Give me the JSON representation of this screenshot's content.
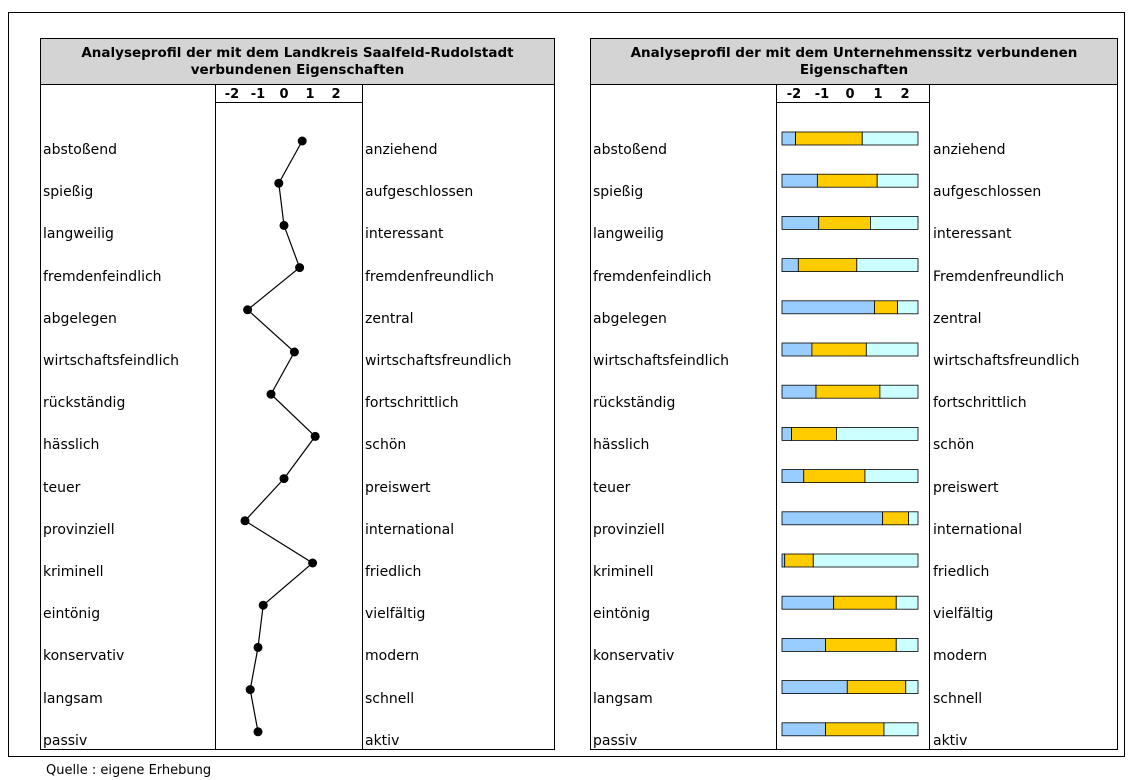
{
  "source_note": "Quelle : eigene Erhebung",
  "colors": {
    "line": "#000000",
    "bar_low": "#99ccff",
    "bar_mid": "#ffcc00",
    "bar_high": "#ccffff",
    "title_bg": "#d4d4d4"
  },
  "chart_data": [
    {
      "type": "line",
      "title": "Analyseprofil der mit dem Landkreis Saalfeld-Rudolstadt verbundenen Eigenschaften",
      "scale_ticks": [
        "-2",
        "-1",
        "0",
        "1",
        "2"
      ],
      "xlim": [
        -2,
        2
      ],
      "left_labels": [
        "abstoßend",
        "spießig",
        "langweilig",
        "fremdenfeindlich",
        "abgelegen",
        "wirtschaftsfeindlich",
        "rückständig",
        "hässlich",
        "teuer",
        "provinziell",
        "kriminell",
        "eintönig",
        "konservativ",
        "langsam",
        "passiv"
      ],
      "right_labels": [
        "anziehend",
        "aufgeschlossen",
        "interessant",
        "fremdenfreundlich",
        "zentral",
        "wirtschaftsfreundlich",
        "fortschrittlich",
        "schön",
        "preiswert",
        "international",
        "friedlich",
        "vielfältig",
        "modern",
        "schnell",
        "aktiv"
      ],
      "values": [
        0.7,
        -0.2,
        0.0,
        0.6,
        -1.4,
        0.4,
        -0.5,
        1.2,
        0.0,
        -1.5,
        1.1,
        -0.8,
        -1.0,
        -1.3,
        -1.0
      ]
    },
    {
      "type": "bar",
      "stacked": true,
      "title": "Analyseprofil der mit dem Unternehmenssitz verbundenen Eigenschaften",
      "scale_ticks": [
        "-2",
        "-1",
        "0",
        "1",
        "2"
      ],
      "left_labels": [
        "abstoßend",
        "spießig",
        "langweilig",
        "fremdenfeindlich",
        "abgelegen",
        "wirtschaftsfeindlich",
        "rückständig",
        "hässlich",
        "teuer",
        "provinziell",
        "kriminell",
        "eintönig",
        "konservativ",
        "langsam",
        "passiv"
      ],
      "right_labels": [
        "anziehend",
        "aufgeschlossen",
        "interessant",
        "Fremdenfreundlich",
        "zentral",
        "wirtschaftsfreundlich",
        "fortschrittlich",
        "schön",
        "preiswert",
        "international",
        "friedlich",
        "vielfältig",
        "modern",
        "schnell",
        "aktiv"
      ],
      "segments": [
        [
          0.1,
          0.49,
          0.41
        ],
        [
          0.26,
          0.44,
          0.3
        ],
        [
          0.27,
          0.38,
          0.35
        ],
        [
          0.12,
          0.43,
          0.45
        ],
        [
          0.68,
          0.17,
          0.15
        ],
        [
          0.22,
          0.4,
          0.38
        ],
        [
          0.25,
          0.47,
          0.28
        ],
        [
          0.07,
          0.33,
          0.6
        ],
        [
          0.16,
          0.45,
          0.39
        ],
        [
          0.74,
          0.19,
          0.07
        ],
        [
          0.02,
          0.21,
          0.77
        ],
        [
          0.38,
          0.46,
          0.16
        ],
        [
          0.32,
          0.52,
          0.16
        ],
        [
          0.48,
          0.43,
          0.09
        ],
        [
          0.32,
          0.43,
          0.25
        ]
      ]
    }
  ]
}
